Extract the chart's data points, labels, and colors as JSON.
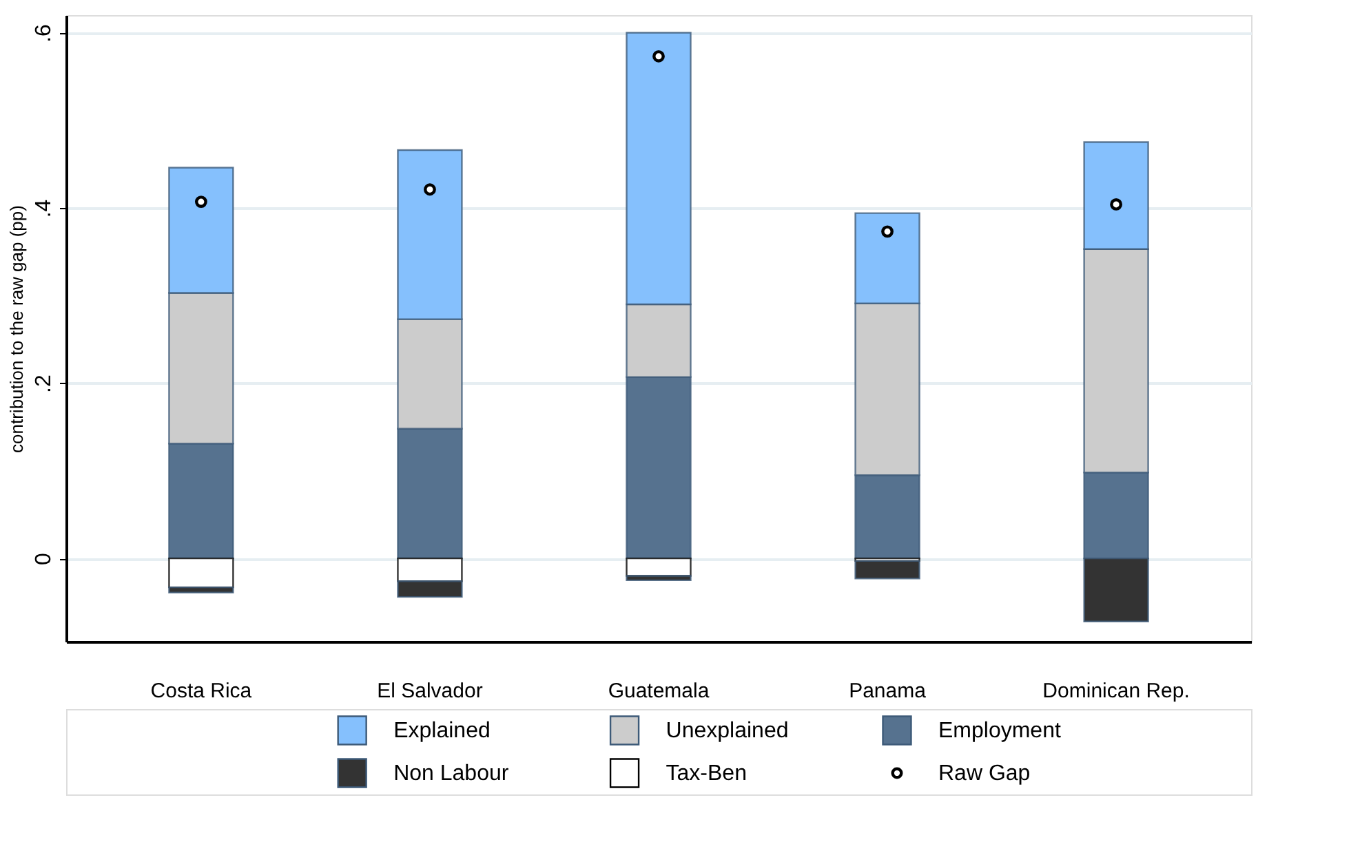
{
  "chart_data": {
    "type": "bar",
    "stacked": true,
    "ylabel": "contribution to the raw gap (pp)",
    "categories": [
      "Costa Rica",
      "El Salvador",
      "Guatemala",
      "Panama",
      "Dominican Rep."
    ],
    "series": [
      {
        "name": "Employment",
        "color": "#56728f",
        "values": [
          0.131,
          0.148,
          0.207,
          0.095,
          0.098
        ]
      },
      {
        "name": "Unexplained",
        "color": "#cccccc",
        "values": [
          0.172,
          0.125,
          0.083,
          0.196,
          0.255
        ]
      },
      {
        "name": "Explained",
        "color": "#85c0fd",
        "values": [
          0.143,
          0.193,
          0.31,
          0.103,
          0.122
        ]
      },
      {
        "name": "Tax-Ben",
        "color": "#ffffff",
        "values": [
          -0.033,
          -0.026,
          -0.02,
          -0.003,
          null
        ]
      },
      {
        "name": "Non Labour",
        "color": "#333333",
        "values": [
          -0.006,
          -0.018,
          -0.005,
          -0.02,
          -0.072
        ]
      },
      {
        "name": "Raw Gap",
        "type": "scatter",
        "marker": "circle",
        "color": "#000000",
        "values": [
          0.407,
          0.421,
          0.573,
          0.373,
          0.404
        ]
      }
    ],
    "ylim": [
      -0.095,
      0.62
    ],
    "yticks": [
      {
        "value": 0,
        "label": "0"
      },
      {
        "value": 0.2,
        "label": ".2"
      },
      {
        "value": 0.4,
        "label": ".4"
      },
      {
        "value": 0.6,
        "label": ".6"
      }
    ],
    "grid": "y",
    "legend": "bottom"
  }
}
